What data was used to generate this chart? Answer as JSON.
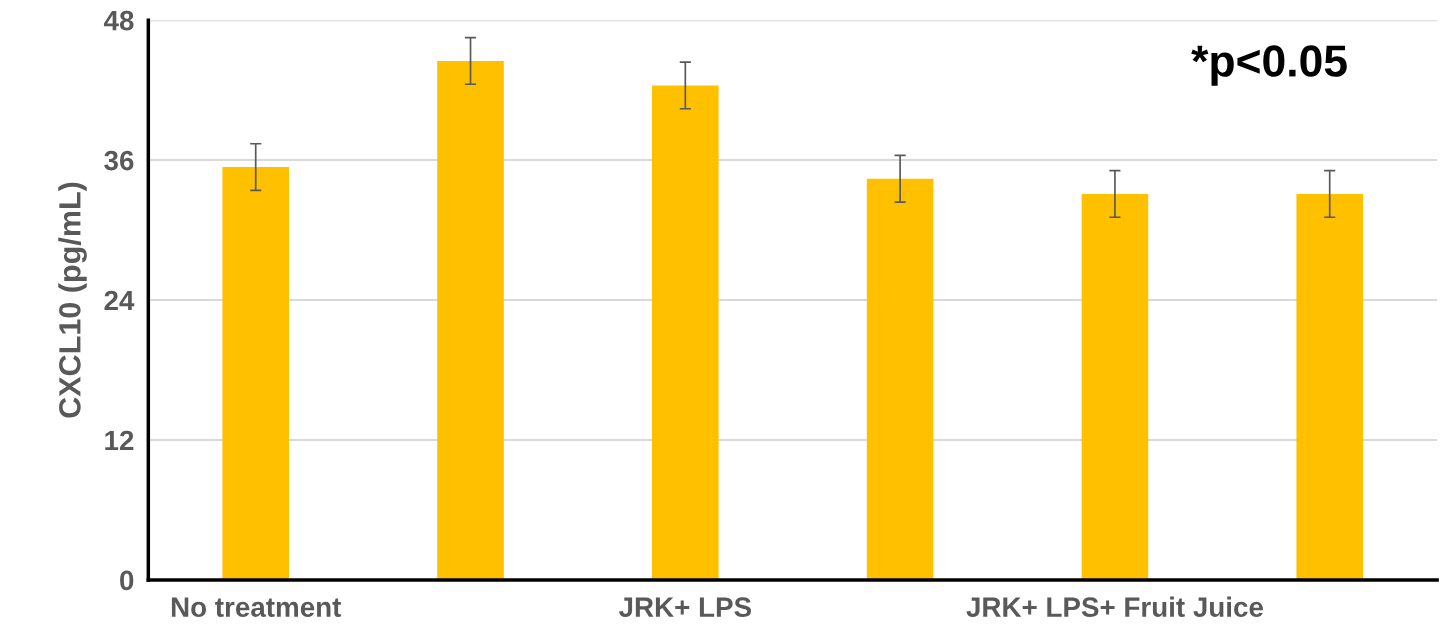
{
  "chart_data": {
    "type": "bar",
    "ylabel": "CXCL10 (pg/mL)",
    "categories": [
      "No treatment",
      null,
      "JRK+ LPS",
      null,
      "JRK+ LPS+ Fruit Juice",
      null
    ],
    "values": [
      35.4,
      44.5,
      42.4,
      34.4,
      33.1,
      33.1
    ],
    "errors": [
      2,
      2,
      2,
      2,
      2,
      2
    ],
    "color": "#ffc000",
    "ylim": [
      0,
      48
    ],
    "yticks": [
      0,
      12,
      24,
      36,
      48
    ],
    "grid": "y",
    "annotations": [
      "*p<0.05"
    ]
  }
}
